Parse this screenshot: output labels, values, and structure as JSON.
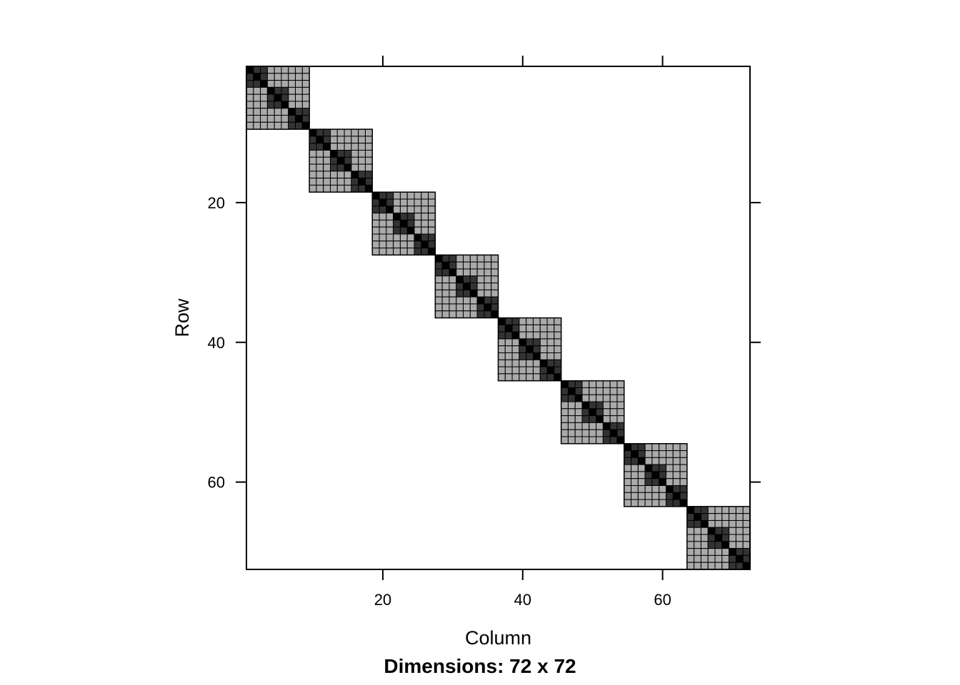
{
  "chart_data": {
    "type": "heatmap",
    "subtype": "sparse-matrix-image",
    "title": "",
    "xlabel": "Column",
    "ylabel": "Row",
    "sub": "Dimensions: 72 x 72",
    "dimensions": [
      72,
      72
    ],
    "xlim": [
      0.5,
      72.5
    ],
    "ylim": [
      72.5,
      0.5
    ],
    "x_ticks": [
      20,
      40,
      60
    ],
    "y_ticks": [
      20,
      40,
      60
    ],
    "x_tick_labels": [
      "20",
      "40",
      "60"
    ],
    "y_tick_labels": [
      "20",
      "40",
      "60"
    ],
    "x_axis_labels_at": "bottom",
    "y_axis_labels_at": "left",
    "block_structure": {
      "outer_block_size": 9,
      "outer_block_count": 8,
      "inner_block_size": 3,
      "note_levels": "0 = empty, 1 = same 9-block, 2 = same 3-block, 3 = diagonal"
    },
    "value_levels": [
      0,
      1,
      2,
      3
    ],
    "level_colors": {
      "0": "#ffffff",
      "1": "#aaaaaa",
      "2": "#333333",
      "3": "#000000"
    },
    "grid": false,
    "legend": "none"
  }
}
